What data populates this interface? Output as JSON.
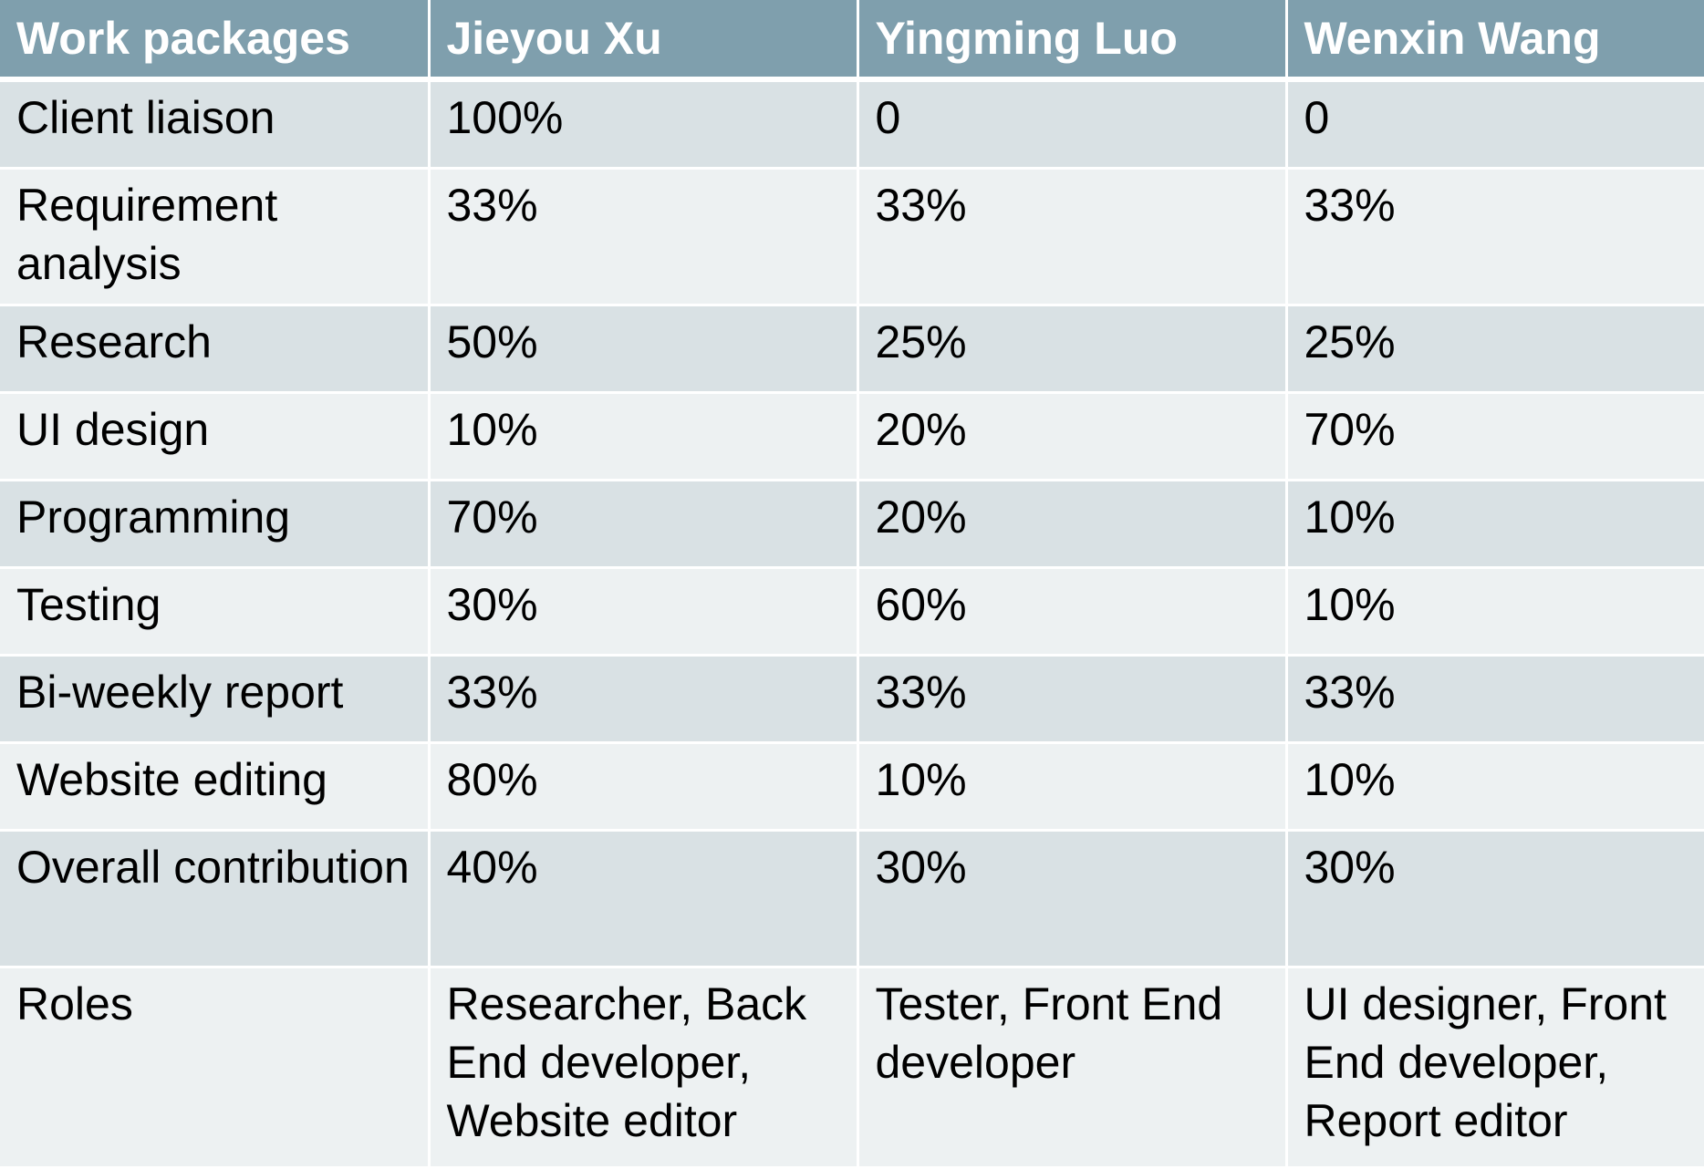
{
  "table": {
    "headers": [
      "Work packages",
      "Jieyou Xu",
      "Yingming Luo",
      "Wenxin Wang"
    ],
    "rows": [
      [
        "Client liaison",
        "100%",
        "0",
        "0"
      ],
      [
        "Requirement analysis",
        "33%",
        "33%",
        "33%"
      ],
      [
        "Research",
        "50%",
        "25%",
        "25%"
      ],
      [
        "UI design",
        "10%",
        "20%",
        "70%"
      ],
      [
        "Programming",
        "70%",
        "20%",
        "10%"
      ],
      [
        "Testing",
        "30%",
        "60%",
        "10%"
      ],
      [
        "Bi-weekly report",
        "33%",
        "33%",
        "33%"
      ],
      [
        "Website editing",
        "80%",
        "10%",
        "10%"
      ],
      [
        "Overall contribution",
        "40%",
        "30%",
        "30%"
      ],
      [
        "Roles",
        "Researcher, Back End developer, Website editor",
        "Tester, Front End developer",
        "UI designer, Front End developer, Report editor"
      ]
    ]
  },
  "colors": {
    "header_background": "#7f9fad",
    "header_text": "#ffffff",
    "row_band_dark": "#d9e1e4",
    "row_band_light": "#edf1f2",
    "cell_border": "#ffffff"
  }
}
